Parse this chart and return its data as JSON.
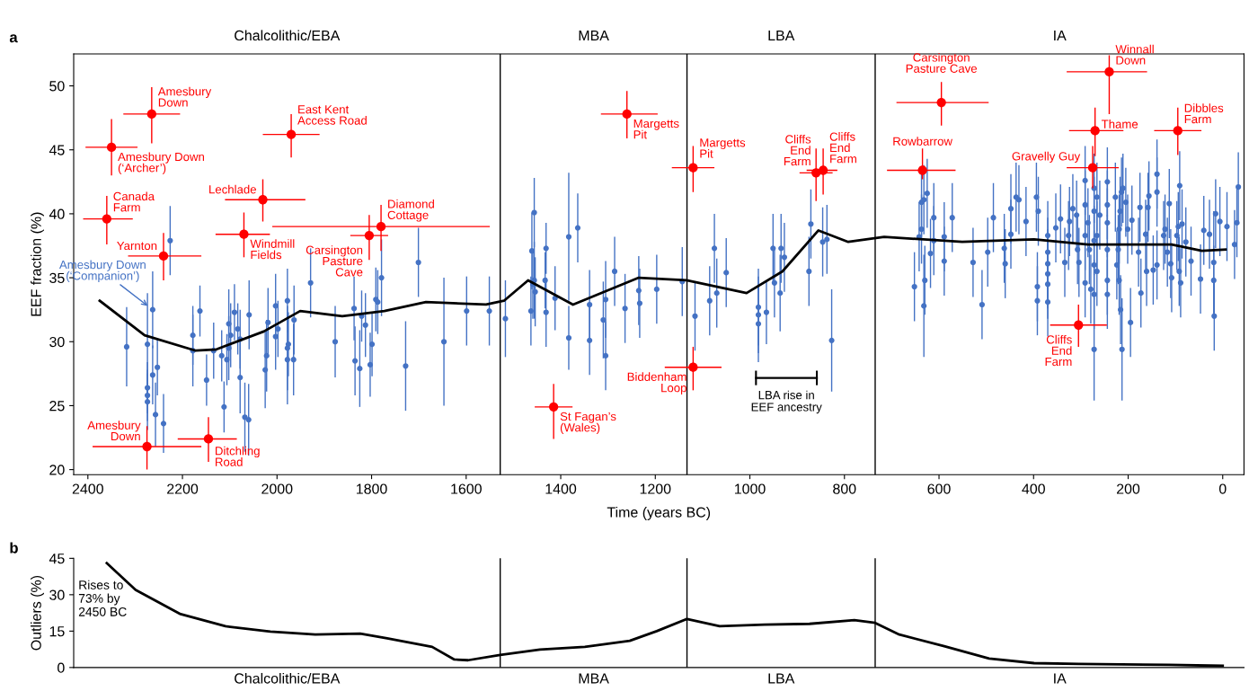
{
  "chart_data": [
    {
      "type": "scatter",
      "xlabel": "Time (years BC)",
      "ylabel": "EEF fraction (%)",
      "xlim": [
        2430,
        -45
      ],
      "ylim": [
        19.6,
        52.5
      ],
      "xticks": [
        2400,
        2200,
        2000,
        1800,
        1600,
        1400,
        1200,
        1000,
        800,
        600,
        400,
        200,
        0
      ],
      "yticks": [
        20,
        25,
        30,
        35,
        40,
        45,
        50
      ],
      "grid": false,
      "marker": "circle",
      "ref_lines": [
        {
          "axis": "x",
          "value": 1528,
          "color": "#000000"
        },
        {
          "axis": "x",
          "value": 1133,
          "color": "#000000"
        },
        {
          "axis": "x",
          "value": 735,
          "color": "#000000"
        }
      ],
      "series": [
        {
          "type": "scatter",
          "color": "#4472c4",
          "x": [
            2318,
            2274,
            2263,
            2263,
            2274,
            2274,
            2274,
            2253,
            2257,
            2240,
            2226,
            2178,
            2178,
            2163,
            2149,
            2134,
            2117,
            2112,
            2106,
            2102,
            2102,
            2098,
            2090,
            2083,
            2078,
            2078,
            2068,
            2060,
            2059,
            2025,
            2022,
            2019,
            2003,
            2003,
            1998,
            1978,
            1976,
            1978,
            1978,
            1965,
            1964,
            1929,
            1877,
            1837,
            1835,
            1825,
            1821,
            1813,
            1803,
            1799,
            1791,
            1787,
            1779,
            1728,
            1701,
            1647,
            1599,
            1551,
            1517,
            1456,
            1461,
            1456,
            1459,
            1463,
            1454,
            1431,
            1433,
            1431,
            1412,
            1383,
            1383,
            1364,
            1339,
            1339,
            1310,
            1305,
            1305,
            1286,
            1264,
            1235,
            1233,
            1197,
            1143,
            1116,
            1085,
            1075,
            1070,
            1050,
            982,
            982,
            982,
            965,
            951,
            948,
            934,
            927,
            936,
            875,
            871,
            846,
            837,
            827,
            652,
            637,
            632,
            625,
            637,
            642,
            630,
            632,
            618,
            611,
            611,
            589,
            589,
            572,
            528,
            509,
            497,
            485,
            462,
            460,
            448,
            448,
            437,
            431,
            416,
            394,
            390,
            392,
            392,
            370,
            370,
            370,
            370,
            370,
            370,
            353,
            343,
            334,
            326,
            324,
            317,
            309,
            307,
            304,
            291,
            291,
            291,
            291,
            285,
            282,
            279,
            272,
            272,
            272,
            272,
            272,
            272,
            266,
            266,
            266,
            260,
            244,
            244,
            244,
            244,
            244,
            244,
            227,
            214,
            217,
            219,
            221,
            224,
            219,
            216,
            213,
            211,
            205,
            201,
            195,
            192,
            175,
            178,
            173,
            163,
            161,
            158,
            156,
            139,
            139,
            139,
            147,
            125,
            122,
            117,
            113,
            110,
            108,
            97,
            94,
            91,
            86,
            92,
            89,
            78,
            67,
            47,
            40,
            28,
            19,
            19,
            18,
            15,
            6,
            -9,
            -25,
            -30,
            -33
          ],
          "values": [
            29.6,
            29.8,
            32.5,
            27.4,
            26.4,
            25.8,
            25.3,
            28.0,
            24.3,
            23.6,
            37.9,
            30.5,
            29.3,
            32.4,
            27.0,
            29.3,
            28.9,
            24.9,
            28.6,
            31.4,
            29.5,
            30.5,
            32.3,
            31.0,
            30.2,
            27.2,
            24.1,
            23.9,
            32.1,
            27.8,
            28.9,
            31.5,
            32.8,
            30.4,
            31.0,
            33.2,
            29.8,
            29.5,
            28.6,
            28.6,
            31.7,
            34.6,
            30.0,
            32.6,
            28.5,
            27.9,
            32.0,
            31.3,
            28.2,
            29.8,
            33.3,
            33.1,
            35.0,
            28.1,
            36.2,
            30.0,
            32.4,
            32.4,
            31.8,
            40.1,
            37.1,
            34.8,
            34.5,
            32.4,
            33.9,
            37.3,
            34.8,
            32.3,
            33.4,
            38.2,
            30.3,
            38.9,
            32.9,
            30.1,
            31.7,
            33.3,
            28.9,
            35.5,
            32.6,
            34.0,
            33.0,
            34.1,
            34.7,
            32.0,
            33.2,
            37.3,
            33.8,
            35.4,
            32.7,
            32.1,
            31.4,
            32.3,
            37.3,
            34.6,
            37.3,
            36.6,
            33.8,
            35.5,
            39.2,
            37.8,
            38.0,
            30.1,
            34.3,
            40.9,
            41.1,
            41.6,
            38.8,
            38.2,
            34.8,
            32.8,
            36.9,
            39.7,
            37.9,
            38.2,
            36.3,
            39.7,
            36.2,
            32.9,
            37.0,
            39.7,
            37.3,
            36.1,
            40.4,
            38.4,
            41.3,
            41.1,
            39.4,
            41.3,
            40.2,
            34.3,
            33.2,
            38.3,
            37.0,
            36.1,
            35.3,
            34.5,
            33.1,
            38.9,
            39.6,
            36.2,
            38.3,
            39.4,
            40.4,
            39.9,
            37.2,
            36.2,
            42.6,
            40.7,
            38.3,
            34.6,
            39.3,
            37.2,
            34.1,
            42.0,
            40.2,
            37.9,
            36.0,
            33.7,
            29.4,
            41.3,
            38.3,
            35.5,
            39.9,
            42.5,
            40.7,
            39.3,
            37.2,
            34.8,
            33.7,
            41.3,
            41.7,
            40.2,
            38.8,
            37.2,
            36.0,
            34.8,
            32.5,
            29.4,
            42.0,
            40.9,
            38.8,
            31.5,
            39.5,
            40.5,
            37.0,
            33.8,
            38.4,
            35.5,
            40.5,
            41.4,
            43.1,
            41.7,
            36.0,
            35.6,
            38.3,
            38.8,
            37.0,
            40.8,
            36.1,
            35.0,
            38.3,
            39.0,
            42.2,
            39.2,
            35.5,
            34.6,
            37.8,
            36.3,
            34.9,
            38.7,
            38.4,
            36.2,
            34.8,
            32.0,
            40.0,
            39.4,
            39.0,
            37.6,
            39.3,
            42.1
          ],
          "errors": [
            3.1,
            4.0,
            3.0,
            2.3,
            2.0,
            2.0,
            2.2,
            2.2,
            2.5,
            2.3,
            2.7,
            2.3,
            2.8,
            2.0,
            2.0,
            2.2,
            2.0,
            2.0,
            2.0,
            2.7,
            2.5,
            2.5,
            2.2,
            2.0,
            2.3,
            2.8,
            2.7,
            2.8,
            2.7,
            3.0,
            2.8,
            2.7,
            2.5,
            2.6,
            2.2,
            2.5,
            2.5,
            3.3,
            3.5,
            2.8,
            2.7,
            2.7,
            2.8,
            2.5,
            2.7,
            3.0,
            2.0,
            2.5,
            2.5,
            2.5,
            2.5,
            2.5,
            3.0,
            3.5,
            2.7,
            5.0,
            2.7,
            2.7,
            3.0,
            2.7,
            3.0,
            3.0,
            2.7,
            2.7,
            2.7,
            2.0,
            2.2,
            2.7,
            2.5,
            5.0,
            2.5,
            2.7,
            2.7,
            2.7,
            3.0,
            3.0,
            2.7,
            2.7,
            2.7,
            2.7,
            2.7,
            2.7,
            2.7,
            2.7,
            2.7,
            2.7,
            2.7,
            2.7,
            3.0,
            3.0,
            3.0,
            2.5,
            2.7,
            2.7,
            2.7,
            2.7,
            3.0,
            2.7,
            2.7,
            2.7,
            2.7,
            4.0,
            2.7,
            2.7,
            2.7,
            2.7,
            2.7,
            2.7,
            2.7,
            4.0,
            2.7,
            2.7,
            2.7,
            2.7,
            2.7,
            2.7,
            2.7,
            2.7,
            2.7,
            2.7,
            2.7,
            2.7,
            2.7,
            2.7,
            2.7,
            2.7,
            2.7,
            2.7,
            2.7,
            2.7,
            2.7,
            2.7,
            2.7,
            2.7,
            2.7,
            2.7,
            2.7,
            2.7,
            2.7,
            2.7,
            2.7,
            2.7,
            2.7,
            2.7,
            2.7,
            2.7,
            2.7,
            2.7,
            2.7,
            2.7,
            2.7,
            2.7,
            2.7,
            2.7,
            2.7,
            2.7,
            2.7,
            2.7,
            4.0,
            2.7,
            2.7,
            2.7,
            2.7,
            2.7,
            2.7,
            2.7,
            2.7,
            2.7,
            2.7,
            2.7,
            2.7,
            2.7,
            2.7,
            2.7,
            2.7,
            2.7,
            2.7,
            4.0,
            2.7,
            2.7,
            2.7,
            2.7,
            2.7,
            2.7,
            2.7,
            2.7,
            2.7,
            2.7,
            2.7,
            2.7,
            2.7,
            2.7,
            2.7,
            2.7,
            2.7,
            2.7,
            2.7,
            2.7,
            2.7,
            2.7,
            2.7,
            2.7,
            2.7,
            2.7,
            2.7,
            2.7,
            2.7,
            2.7,
            2.7,
            2.7,
            2.7,
            4.0,
            2.7,
            2.7,
            2.7,
            2.7,
            2.7,
            2.7,
            2.7,
            2.7
          ]
        },
        {
          "type": "scatter",
          "color": "#ff0000",
          "x": [
            2265,
            2350,
            1970,
            2030,
            2360,
            2070,
            1805,
            1780,
            2240,
            2275,
            2145,
            1260,
            1120,
            860,
            845,
            1120,
            1415,
            595,
            240,
            270,
            95,
            635,
            275,
            305
          ],
          "values": [
            47.8,
            45.2,
            46.2,
            41.1,
            39.6,
            38.4,
            38.3,
            39.0,
            36.7,
            21.8,
            22.4,
            47.8,
            43.6,
            43.2,
            43.4,
            28.0,
            24.9,
            48.7,
            51.1,
            46.5,
            46.5,
            43.4,
            43.6,
            31.3
          ],
          "errors": [
            [
              45.5,
              49.9
            ],
            [
              43.0,
              47.4
            ],
            [
              44.4,
              47.8
            ],
            [
              39.4,
              42.7
            ],
            [
              37.6,
              41.4
            ],
            [
              36.6,
              40.1
            ],
            [
              36.4,
              39.9
            ],
            [
              37.1,
              40.7
            ],
            [
              34.8,
              38.5
            ],
            [
              20.0,
              23.4
            ],
            [
              20.6,
              24.1
            ],
            [
              45.9,
              49.6
            ],
            [
              41.7,
              45.3
            ],
            [
              41.0,
              45.1
            ],
            [
              41.5,
              45.1
            ],
            [
              26.2,
              29.6
            ],
            [
              22.4,
              26.7
            ],
            [
              46.9,
              50.3
            ],
            [
              47.8,
              52.4
            ],
            [
              44.5,
              48.3
            ],
            [
              44.6,
              48.3
            ],
            [
              42.7,
              45.1
            ],
            [
              42.0,
              45.3
            ],
            [
              29.6,
              32.9
            ]
          ],
          "xerrors": [
            [
              2205,
              2325
            ],
            [
              2295,
              2405
            ],
            [
              1910,
              2030
            ],
            [
              1940,
              2110
            ],
            [
              2305,
              2410
            ],
            [
              2015,
              2130
            ],
            [
              1765,
              1845
            ],
            [
              1550,
              2010
            ],
            [
              2160,
              2315
            ],
            [
              2160,
              2390
            ],
            [
              2085,
              2210
            ],
            [
              1195,
              1315
            ],
            [
              1075,
              1165
            ],
            [
              825,
              895
            ],
            [
              815,
              880
            ],
            [
              1060,
              1180
            ],
            [
              1375,
              1455
            ],
            [
              495,
              690
            ],
            [
              160,
              330
            ],
            [
              210,
              325
            ],
            [
              45,
              145
            ],
            [
              565,
              710
            ],
            [
              220,
              330
            ],
            [
              245,
              365
            ]
          ]
        },
        {
          "type": "line",
          "color": "#000000",
          "marker": "none",
          "line_style": "solid",
          "x": [
            2375,
            2280,
            2172,
            2128,
            2028,
            1951,
            1862,
            1773,
            1685,
            1558,
            1520,
            1469,
            1374,
            1235,
            1134,
            1007,
            931,
            855,
            792,
            716,
            551,
            399,
            285,
            108,
            44,
            -6
          ],
          "values": [
            33.2,
            30.5,
            29.3,
            29.4,
            30.8,
            32.4,
            32.0,
            32.4,
            33.1,
            32.9,
            33.2,
            34.8,
            32.9,
            35.0,
            34.8,
            33.8,
            35.5,
            38.7,
            37.8,
            38.2,
            37.8,
            38.0,
            37.6,
            37.6,
            37.1,
            37.2
          ]
        }
      ],
      "annotations": [
        "a",
        "Chalcolithic/EBA",
        "MBA",
        "LBA",
        "IA",
        {
          "text": "Amesbury\nDown",
          "x": 2265,
          "y": 47.8
        },
        {
          "text": "Amesbury Down\n(‘Archer’)",
          "x": 2350,
          "y": 45.2
        },
        {
          "text": "East Kent\nAccess Road",
          "x": 1970,
          "y": 46.2
        },
        {
          "text": "Lechlade",
          "x": 2030,
          "y": 41.1
        },
        {
          "text": "Canada\nFarm",
          "x": 2360,
          "y": 39.6
        },
        {
          "text": "Windmill\nFields",
          "x": 2070,
          "y": 38.4
        },
        {
          "text": "Carsington\nPasture\nCave",
          "x": 1805,
          "y": 38.3
        },
        {
          "text": "Diamond\nCottage",
          "x": 1780,
          "y": 39.0
        },
        {
          "text": "Yarnton",
          "x": 2240,
          "y": 36.7
        },
        {
          "text": "Amesbury\nDown",
          "x": 2275,
          "y": 21.8
        },
        {
          "text": "Ditchling\nRoad",
          "x": 2145,
          "y": 22.4
        },
        {
          "text": "Margetts\nPit",
          "x": 1260,
          "y": 47.8
        },
        {
          "text": "Margetts\nPit",
          "x": 1120,
          "y": 43.6
        },
        {
          "text": "Cliffs\nEnd\nFarm",
          "x": 860,
          "y": 43.2
        },
        {
          "text": "Cliffs\nEnd\nFarm",
          "x": 845,
          "y": 43.4
        },
        {
          "text": "Biddenham\nLoop",
          "x": 1120,
          "y": 28.0
        },
        {
          "text": "St Fagan’s\n(Wales)",
          "x": 1415,
          "y": 24.9
        },
        {
          "text": "Carsington\nPasture Cave",
          "x": 595,
          "y": 48.7
        },
        {
          "text": "Winnall\nDown",
          "x": 240,
          "y": 51.1
        },
        {
          "text": "Thame",
          "x": 270,
          "y": 46.5
        },
        {
          "text": "Dibbles\nFarm",
          "x": 95,
          "y": 46.5
        },
        {
          "text": "Rowbarrow",
          "x": 635,
          "y": 43.4
        },
        {
          "text": "Gravelly Guy",
          "x": 275,
          "y": 43.6
        },
        {
          "text": "Cliffs\nEnd\nFarm",
          "x": 305,
          "y": 31.3
        },
        {
          "text": "Amesbury Down\n(‘Companion’)",
          "x": 2263,
          "y": 32.5
        },
        "LBA rise in\nEEF ancestry"
      ]
    },
    {
      "type": "line",
      "ylabel": "Outliers (%)",
      "xlim": [
        2430,
        -45
      ],
      "ylim": [
        0,
        45
      ],
      "yticks": [
        0,
        15,
        30,
        45
      ],
      "tick_labels": "y",
      "grid": false,
      "ref_lines": [
        {
          "axis": "x",
          "value": 1528,
          "color": "#000000"
        },
        {
          "axis": "x",
          "value": 1133,
          "color": "#000000"
        },
        {
          "axis": "x",
          "value": 735,
          "color": "#000000"
        }
      ],
      "series": [
        {
          "color": "#000000",
          "x": [
            2360,
            2299,
            2204,
            2109,
            2014,
            1919,
            1824,
            1767,
            1672,
            1625,
            1596,
            1528,
            1444,
            1349,
            1254,
            1197,
            1133,
            1064,
            969,
            874,
            779,
            735,
            684,
            589,
            494,
            399,
            304,
            114,
            0
          ],
          "values": [
            43,
            32,
            22,
            17,
            14.8,
            13.6,
            14,
            12,
            8.5,
            3.3,
            3,
            5.2,
            7.4,
            8.5,
            11,
            15,
            20,
            17,
            17.7,
            18,
            19.5,
            18.4,
            13.6,
            8.8,
            3.7,
            1.8,
            1.5,
            1.1,
            0.7
          ]
        }
      ],
      "annotations": [
        "b",
        "Chalcolithic/EBA",
        "MBA",
        "LBA",
        "IA",
        "Rises to\n73% by\n2450 BC"
      ]
    }
  ]
}
